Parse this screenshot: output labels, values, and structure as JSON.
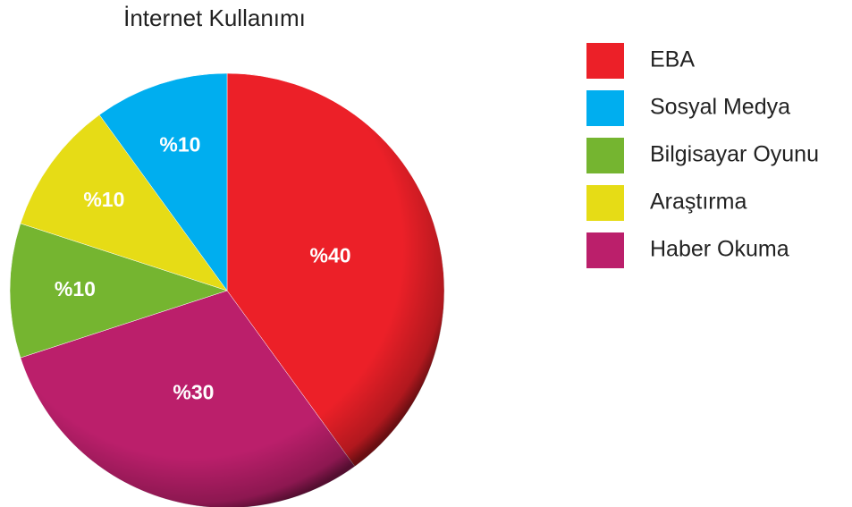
{
  "chart_data": {
    "type": "pie",
    "title": "İnternet Kullanımı",
    "categories": [
      "EBA",
      "Haber Okuma",
      "Bilgisayar Oyunu",
      "Araştırma",
      "Sosyal Medya"
    ],
    "values": [
      40,
      30,
      10,
      10,
      10
    ],
    "value_labels": [
      "%40",
      "%30",
      "%10",
      "%10",
      "%10"
    ],
    "colors": [
      "#ec2028",
      "#bb1f6b",
      "#75b530",
      "#e6dc16",
      "#00aeef"
    ],
    "legend": [
      "EBA",
      "Sosyal Medya",
      "Bilgisayar Oyunu",
      "Araştırma",
      "Haber Okuma"
    ],
    "legend_position": "right"
  }
}
